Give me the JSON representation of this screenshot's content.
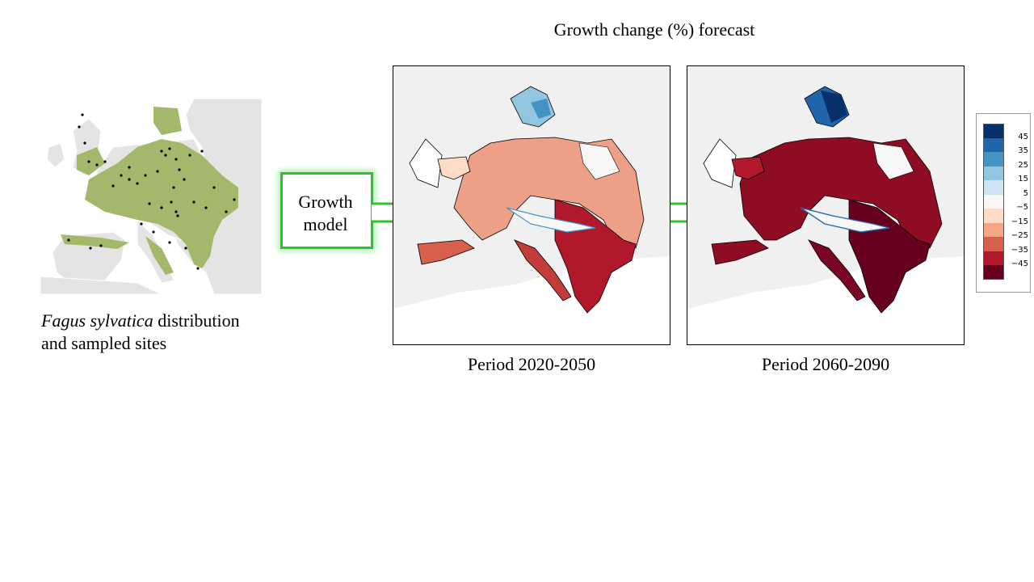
{
  "title": "Growth change (%) forecast",
  "source": {
    "caption_species": "Fagus sylvatica",
    "caption_rest_line1": " distribution",
    "caption_line2": "and sampled sites",
    "land_color": "#e4e4e4",
    "range_color": "#a4b86c",
    "site_color": "#000000"
  },
  "model": {
    "label_line1": "Growth",
    "label_line2": "model",
    "border_color": "#2fc12f"
  },
  "periods": [
    {
      "label": "Period 2020-2050"
    },
    {
      "label": "Period 2060-2090"
    }
  ],
  "legend": {
    "ticks": [
      "45",
      "35",
      "25",
      "15",
      "5",
      "−5",
      "−15",
      "−25",
      "−35",
      "−45"
    ],
    "colors": [
      "#08306b",
      "#2166ac",
      "#4393c3",
      "#92c5de",
      "#d1e5f0",
      "#f7f7f7",
      "#fddbc7",
      "#f4a582",
      "#d6604d",
      "#b2182b",
      "#67001f"
    ]
  },
  "map_colors": {
    "sea": "#ffffff",
    "land": "#f0f0f0",
    "borders": "#000000"
  }
}
